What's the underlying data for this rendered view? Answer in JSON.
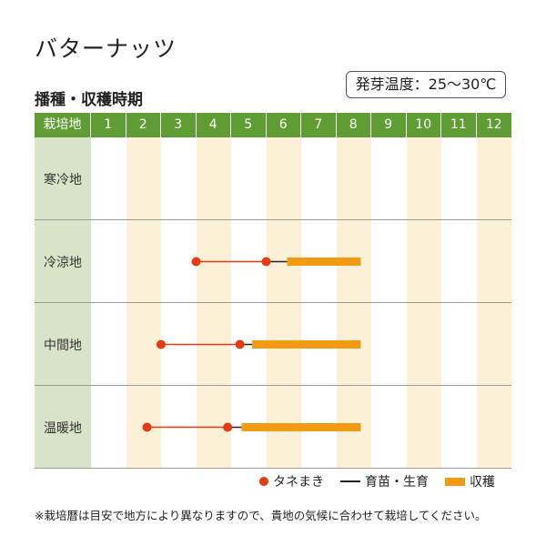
{
  "title": "バターナッツ",
  "temperature": "発芽温度：25〜30℃",
  "subtitle": "播種・収穫時期",
  "header": {
    "region_label": "栽培地",
    "months": [
      "1",
      "2",
      "3",
      "4",
      "5",
      "6",
      "7",
      "8",
      "9",
      "10",
      "11",
      "12"
    ]
  },
  "regions": [
    {
      "name": "寒冷地",
      "schedule": null
    },
    {
      "name": "冷涼地",
      "schedule": {
        "sow_start": 4.0,
        "sow_end": 6.0,
        "grow_end": 6.6,
        "harvest_start": 6.6,
        "harvest_end": 8.7
      }
    },
    {
      "name": "中間地",
      "schedule": {
        "sow_start": 3.0,
        "sow_end": 5.25,
        "grow_end": 5.6,
        "harvest_start": 5.6,
        "harvest_end": 8.7
      }
    },
    {
      "name": "温暖地",
      "schedule": {
        "sow_start": 2.6,
        "sow_end": 4.9,
        "grow_end": 5.3,
        "harvest_start": 5.3,
        "harvest_end": 8.7
      }
    }
  ],
  "legend": {
    "sowing": "タネまき",
    "seedling": "育苗・生育",
    "harvest": "収穫"
  },
  "colors": {
    "header_green": "#5f9d34",
    "label_bg": "#d8e3c7",
    "alt_column": "#fcf0d6",
    "sowing_dot": "#e53a12",
    "harvest_bar": "#f29a11",
    "grow_line": "#222222"
  },
  "note": "※栽培暦は目安で地方により異なりますので、貴地の気候に合わせて栽培してください。"
}
